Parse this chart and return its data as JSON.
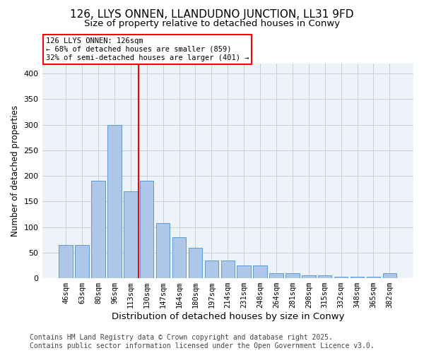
{
  "title1": "126, LLYS ONNEN, LLANDUDNO JUNCTION, LL31 9FD",
  "title2": "Size of property relative to detached houses in Conwy",
  "xlabel": "Distribution of detached houses by size in Conwy",
  "ylabel": "Number of detached properties",
  "categories": [
    "46sqm",
    "63sqm",
    "80sqm",
    "96sqm",
    "113sqm",
    "130sqm",
    "147sqm",
    "164sqm",
    "180sqm",
    "197sqm",
    "214sqm",
    "231sqm",
    "248sqm",
    "264sqm",
    "281sqm",
    "298sqm",
    "315sqm",
    "332sqm",
    "348sqm",
    "365sqm",
    "382sqm"
  ],
  "values": [
    65,
    65,
    190,
    300,
    170,
    190,
    108,
    80,
    60,
    35,
    35,
    25,
    25,
    10,
    10,
    5,
    5,
    3,
    3,
    3,
    10
  ],
  "bar_color": "#aec6e8",
  "bar_edge_color": "#5b9bd5",
  "vline_color": "red",
  "annotation_line1": "126 LLYS ONNEN: 126sqm",
  "annotation_line2": "← 68% of detached houses are smaller (859)",
  "annotation_line3": "32% of semi-detached houses are larger (401) →",
  "ylim": [
    0,
    420
  ],
  "yticks": [
    0,
    50,
    100,
    150,
    200,
    250,
    300,
    350,
    400
  ],
  "footer1": "Contains HM Land Registry data © Crown copyright and database right 2025.",
  "footer2": "Contains public sector information licensed under the Open Government Licence v3.0.",
  "bg_color": "#eef2f9",
  "grid_color": "#c8cdd8"
}
